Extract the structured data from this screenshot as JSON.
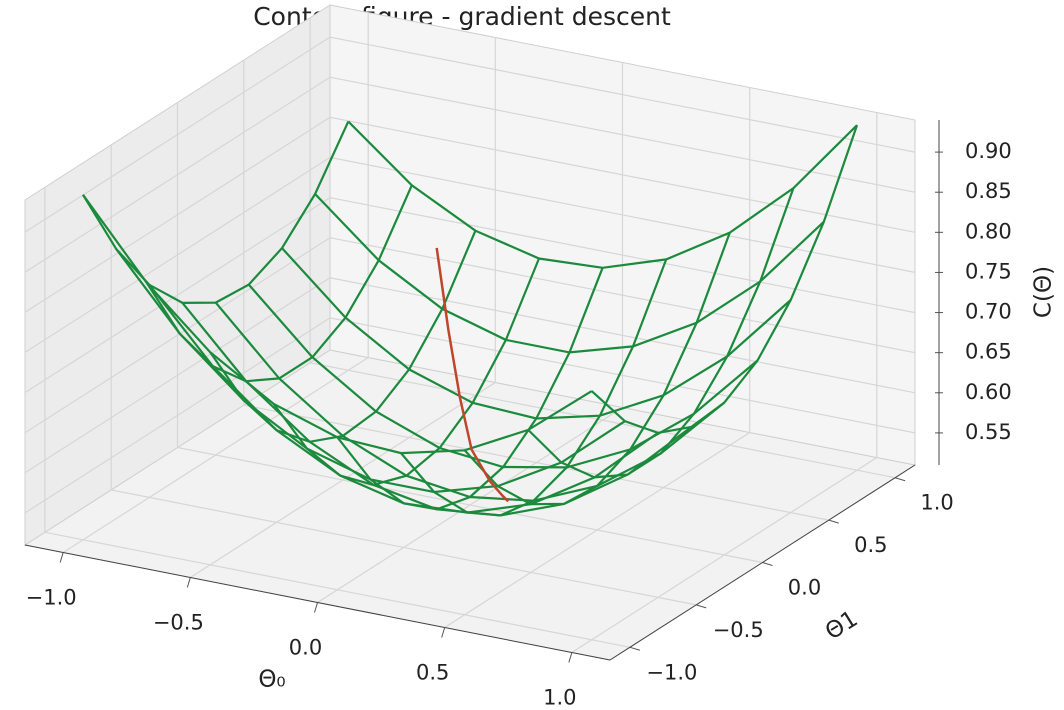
{
  "chart_data": {
    "type": "surface3d",
    "title": "Contour figure - gradient descent",
    "x_label": "Θ₀",
    "y_label": "Θ1",
    "z_label": "C(Θ)",
    "x": [
      -1,
      -0.75,
      -0.5,
      -0.25,
      0,
      0.25,
      0.5,
      0.75,
      1
    ],
    "y": [
      -1,
      -0.75,
      -0.5,
      -0.25,
      0,
      0.25,
      0.5,
      0.75,
      1
    ],
    "z": [
      [
        0.94,
        0.846,
        0.775,
        0.726,
        0.7,
        0.696,
        0.715,
        0.756,
        0.82
      ],
      [
        0.846,
        0.756,
        0.689,
        0.644,
        0.621,
        0.621,
        0.644,
        0.689,
        0.756
      ],
      [
        0.775,
        0.689,
        0.625,
        0.584,
        0.565,
        0.569,
        0.595,
        0.644,
        0.715
      ],
      [
        0.726,
        0.644,
        0.584,
        0.546,
        0.531,
        0.539,
        0.569,
        0.621,
        0.696
      ],
      [
        0.7,
        0.621,
        0.565,
        0.531,
        0.52,
        0.531,
        0.565,
        0.621,
        0.7
      ],
      [
        0.696,
        0.621,
        0.569,
        0.539,
        0.531,
        0.546,
        0.584,
        0.644,
        0.726
      ],
      [
        0.715,
        0.644,
        0.595,
        0.569,
        0.565,
        0.584,
        0.625,
        0.689,
        0.775
      ],
      [
        0.756,
        0.689,
        0.644,
        0.621,
        0.621,
        0.644,
        0.689,
        0.756,
        0.846
      ],
      [
        0.82,
        0.756,
        0.715,
        0.696,
        0.7,
        0.726,
        0.775,
        0.846,
        0.94
      ]
    ],
    "color": "#1b8a3c",
    "path": {
      "color": "#c0452b",
      "x": [
        -0.6,
        -0.45,
        -0.3,
        -0.15,
        0,
        0.1,
        0.15
      ],
      "y": [
        0.9,
        0.7,
        0.5,
        0.3,
        0.15,
        0.05,
        0
      ],
      "z": [
        0.698,
        0.626,
        0.572,
        0.538,
        0.524,
        0.523,
        0.524
      ]
    },
    "xlim": [
      -1.15,
      1.15
    ],
    "ylim": [
      -1.15,
      1.15
    ],
    "zlim": [
      0.51,
      0.94
    ],
    "xticks": [
      {
        "value": -1,
        "label": "−1.0"
      },
      {
        "value": -0.5,
        "label": "−0.5"
      },
      {
        "value": 0,
        "label": "0.0"
      },
      {
        "value": 0.5,
        "label": "0.5"
      },
      {
        "value": 1,
        "label": "1.0"
      }
    ],
    "yticks": [
      {
        "value": -1,
        "label": "−1.0"
      },
      {
        "value": -0.5,
        "label": "−0.5"
      },
      {
        "value": 0,
        "label": "0.0"
      },
      {
        "value": 0.5,
        "label": "0.5"
      },
      {
        "value": 1,
        "label": "1.0"
      }
    ],
    "zticks": [
      0.55,
      {
        "value": 0.6,
        "label": "0.60"
      },
      0.65,
      {
        "value": 0.7,
        "label": "0.70"
      },
      0.75,
      {
        "value": 0.8,
        "label": "0.80"
      },
      0.85,
      {
        "value": 0.9,
        "label": "0.90"
      }
    ],
    "grid": true
  }
}
